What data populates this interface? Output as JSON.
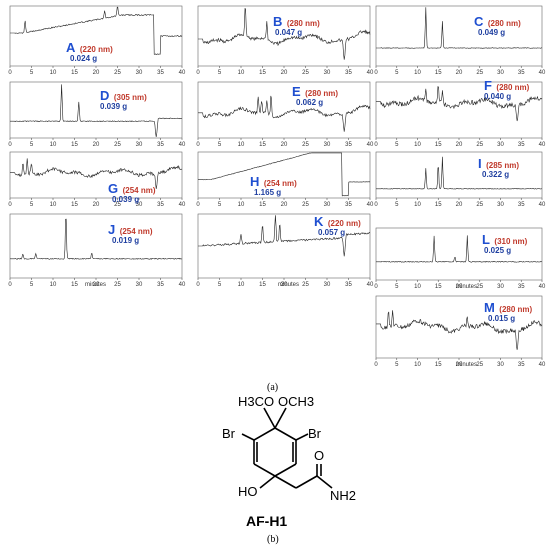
{
  "figure": {
    "caption_a": "(a)",
    "caption_b": "(b)",
    "compound_name": "AF-H1"
  },
  "colors": {
    "panel_letter": "#1f4fd0",
    "wavelength": "#c0392b",
    "mass": "#1f3fa0",
    "trace": "#222222"
  },
  "chart_data": [
    {
      "type": "line",
      "panel": "A",
      "wavelength": "(220 nm)",
      "mass": "0.024 g",
      "xlim": [
        0,
        40
      ],
      "xticks": [
        "0",
        "5",
        "10",
        "15",
        "20",
        "25",
        "30",
        "35",
        "40"
      ],
      "xlabel": ""
    },
    {
      "type": "line",
      "panel": "B",
      "wavelength": "(280 nm)",
      "mass": "0.047 g",
      "xlim": [
        0,
        40
      ],
      "xticks": [
        "0",
        "5",
        "10",
        "15",
        "20",
        "25",
        "30",
        "35",
        "40"
      ],
      "xlabel": ""
    },
    {
      "type": "line",
      "panel": "C",
      "wavelength": "(280 nm)",
      "mass": "0.049 g",
      "xlim": [
        0,
        40
      ],
      "xticks": [
        "0",
        "5",
        "10",
        "15",
        "20",
        "25",
        "30",
        "35",
        "40"
      ],
      "xlabel": ""
    },
    {
      "type": "line",
      "panel": "D",
      "wavelength": "(305 nm)",
      "mass": "0.039 g",
      "xlim": [
        0,
        40
      ],
      "xticks": [
        "0",
        "5",
        "10",
        "15",
        "20",
        "25",
        "30",
        "35",
        "40"
      ],
      "xlabel": ""
    },
    {
      "type": "line",
      "panel": "E",
      "wavelength": "(280 nm)",
      "mass": "0.062 g",
      "xlim": [
        0,
        40
      ],
      "xticks": [
        "0",
        "5",
        "10",
        "15",
        "20",
        "25",
        "30",
        "35",
        "40"
      ],
      "xlabel": ""
    },
    {
      "type": "line",
      "panel": "F",
      "wavelength": "(280 nm)",
      "mass": "0.040 g",
      "xlim": [
        0,
        40
      ],
      "xticks": [
        "0",
        "5",
        "10",
        "15",
        "20",
        "25",
        "30",
        "35",
        "40"
      ],
      "xlabel": ""
    },
    {
      "type": "line",
      "panel": "G",
      "wavelength": "(254 nm)",
      "mass": "0.039 g",
      "xlim": [
        0,
        40
      ],
      "xticks": [
        "0",
        "5",
        "10",
        "15",
        "20",
        "25",
        "30",
        "35",
        "40"
      ],
      "xlabel": ""
    },
    {
      "type": "line",
      "panel": "H",
      "wavelength": "(254 nm)",
      "mass": "1.165 g",
      "xlim": [
        0,
        40
      ],
      "xticks": [
        "0",
        "5",
        "10",
        "15",
        "20",
        "25",
        "30",
        "35",
        "40"
      ],
      "xlabel": ""
    },
    {
      "type": "line",
      "panel": "I",
      "wavelength": "(285 nm)",
      "mass": "0.322 g",
      "xlim": [
        0,
        40
      ],
      "xticks": [
        "0",
        "5",
        "10",
        "15",
        "20",
        "25",
        "30",
        "35",
        "40"
      ],
      "xlabel": ""
    },
    {
      "type": "line",
      "panel": "J",
      "wavelength": "(254 nm)",
      "mass": "0.019 g",
      "xlim": [
        0,
        40
      ],
      "xticks": [
        "0",
        "5",
        "10",
        "15",
        "20",
        "25",
        "30",
        "35",
        "40"
      ],
      "xlabel": "minutes"
    },
    {
      "type": "line",
      "panel": "K",
      "wavelength": "(220 nm)",
      "mass": "0.057 g",
      "xlim": [
        0,
        40
      ],
      "xticks": [
        "0",
        "5",
        "10",
        "15",
        "20",
        "25",
        "30",
        "35",
        "40"
      ],
      "xlabel": "minutes"
    },
    {
      "type": "line",
      "panel": "L",
      "wavelength": "(310 nm)",
      "mass": "0.025 g",
      "xlim": [
        0,
        40
      ],
      "xticks": [
        "0",
        "5",
        "10",
        "15",
        "20",
        "25",
        "30",
        "35",
        "40"
      ],
      "xlabel": "minutes"
    },
    {
      "type": "line",
      "panel": "M",
      "wavelength": "(280 nm)",
      "mass": "0.015 g",
      "xlim": [
        0,
        40
      ],
      "xticks": [
        "0",
        "5",
        "10",
        "15",
        "20",
        "25",
        "30",
        "35",
        "40"
      ],
      "xlabel": "minutes"
    }
  ],
  "molecule": {
    "methoxy_left": "H3CO",
    "methoxy_right": "OCH3",
    "br_left": "Br",
    "br_right": "Br",
    "hydroxyl": "HO",
    "amine": "NH2",
    "oxygen": "O"
  }
}
